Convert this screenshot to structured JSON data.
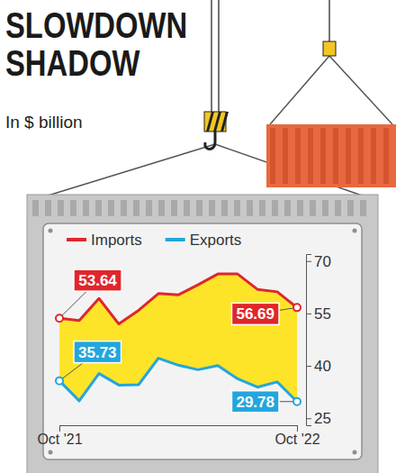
{
  "chart_data": {
    "type": "line",
    "title": "SLOWDOWN SHADOW",
    "subtitle": "In $ billion",
    "categories": [
      "Oct '21",
      null,
      null,
      null,
      null,
      null,
      null,
      null,
      null,
      null,
      null,
      null,
      "Oct '22"
    ],
    "series": [
      {
        "name": "Imports",
        "color": "#e0262b",
        "values": [
          53.64,
          53.0,
          59.3,
          52.0,
          55.9,
          60.7,
          60.3,
          63.2,
          66.3,
          66.3,
          61.9,
          61.2,
          56.69
        ],
        "value_labels": [
          "53.64",
          null,
          null,
          null,
          null,
          null,
          null,
          null,
          null,
          null,
          null,
          null,
          "56.69"
        ]
      },
      {
        "name": "Exports",
        "color": "#23a6dc",
        "values": [
          35.73,
          30.0,
          37.8,
          34.5,
          34.6,
          42.2,
          40.2,
          38.9,
          40.1,
          36.3,
          33.9,
          35.4,
          29.78
        ],
        "value_labels": [
          "35.73",
          null,
          null,
          null,
          null,
          null,
          null,
          null,
          null,
          null,
          null,
          null,
          "29.78"
        ]
      }
    ],
    "ylim": [
      23,
      72
    ],
    "yticks": [
      25,
      40,
      55,
      70
    ],
    "legend": "top",
    "grid": false
  }
}
